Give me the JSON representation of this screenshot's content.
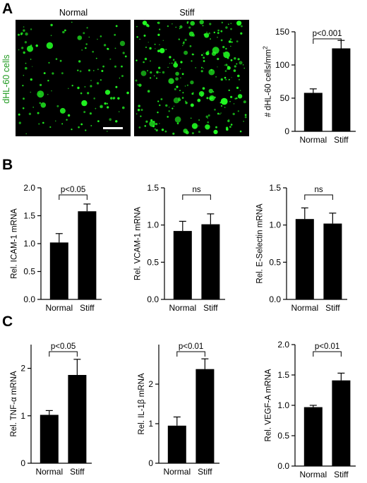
{
  "panel_letters": [
    "A",
    "B",
    "C"
  ],
  "micrographs": {
    "row_label": "dHL-60 cells",
    "label_color": "#1f9a1f",
    "image_titles": [
      "Normal",
      "Stiff"
    ],
    "cell_color": "#22ff22",
    "background_color": "#000000",
    "scale_bar_color": "#ffffff"
  },
  "chart_data": [
    {
      "type": "bar",
      "panel": "A",
      "categories": [
        "Normal",
        "Stiff"
      ],
      "values": [
        58,
        125
      ],
      "errors": [
        6,
        12
      ],
      "ylabel": "# dHL-60 cells/mm²",
      "ylim": [
        0,
        150
      ],
      "yticks": [
        0,
        50,
        100,
        150
      ],
      "ytick_labels": [
        "0",
        "50",
        "100",
        "150"
      ],
      "significance": "p<0.001"
    },
    {
      "type": "bar",
      "panel": "B",
      "categories": [
        "Normal",
        "Stiff"
      ],
      "values": [
        1.02,
        1.58
      ],
      "errors": [
        0.16,
        0.13
      ],
      "ylabel": "Rel. ICAM-1 mRNA",
      "ylim": [
        0,
        2.0
      ],
      "yticks": [
        0,
        0.5,
        1.0,
        1.5,
        2.0
      ],
      "ytick_labels": [
        "0.0",
        "0.5",
        "1.0",
        "1.5",
        "2.0"
      ],
      "significance": "p<0.05"
    },
    {
      "type": "bar",
      "panel": "B",
      "categories": [
        "Normal",
        "Stiff"
      ],
      "values": [
        0.92,
        1.01
      ],
      "errors": [
        0.13,
        0.14
      ],
      "ylabel": "Rel. VCAM-1 mRNA",
      "ylim": [
        0,
        1.5
      ],
      "yticks": [
        0,
        0.5,
        1.0,
        1.5
      ],
      "ytick_labels": [
        "0.0",
        "0.5",
        "1.0",
        "1.5"
      ],
      "significance": "ns"
    },
    {
      "type": "bar",
      "panel": "B",
      "categories": [
        "Normal",
        "Stiff"
      ],
      "values": [
        1.08,
        1.02
      ],
      "errors": [
        0.15,
        0.14
      ],
      "ylabel": "Rel. E-Selectin mRNA",
      "ylim": [
        0,
        1.5
      ],
      "yticks": [
        0,
        0.5,
        1.0,
        1.5
      ],
      "ytick_labels": [
        "0.0",
        "0.5",
        "1.0",
        "1.5"
      ],
      "significance": "ns"
    },
    {
      "type": "bar",
      "panel": "C",
      "categories": [
        "Normal",
        "Stiff"
      ],
      "values": [
        1.02,
        1.86
      ],
      "errors": [
        0.09,
        0.33
      ],
      "ylabel": "Rel. TNF-α mRNA",
      "ylim": [
        0,
        2.5
      ],
      "yticks": [
        0,
        1,
        2
      ],
      "ytick_labels": [
        "0",
        "1",
        "2"
      ],
      "significance": "p<0.05"
    },
    {
      "type": "bar",
      "panel": "C",
      "categories": [
        "Normal",
        "Stiff"
      ],
      "values": [
        0.95,
        2.38
      ],
      "errors": [
        0.22,
        0.26
      ],
      "ylabel": "Rel. IL-1β mRNA",
      "ylim": [
        0,
        3.0
      ],
      "yticks": [
        0,
        1,
        2
      ],
      "ytick_labels": [
        "0",
        "1",
        "2"
      ],
      "significance": "p<0.01"
    },
    {
      "type": "bar",
      "panel": "C",
      "categories": [
        "Normal",
        "Stiff"
      ],
      "values": [
        0.97,
        1.41
      ],
      "errors": [
        0.03,
        0.12
      ],
      "ylabel": "Rel. VEGF-A mRNA",
      "ylim": [
        0,
        2.0
      ],
      "yticks": [
        0,
        0.5,
        1.0,
        1.5,
        2.0
      ],
      "ytick_labels": [
        "0.0",
        "0.5",
        "1.0",
        "1.5",
        "2.0"
      ],
      "significance": "p<0.01"
    }
  ]
}
